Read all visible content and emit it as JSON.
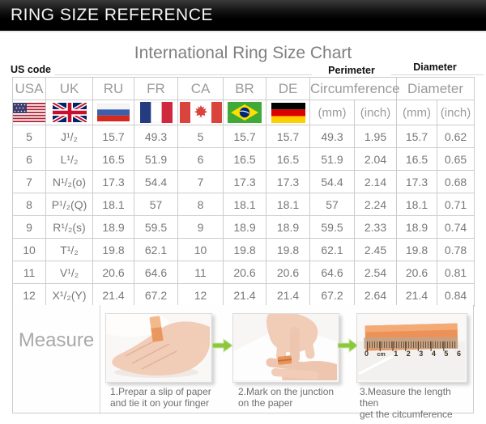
{
  "banner": {
    "title": "RING SIZE REFERENCE"
  },
  "chart": {
    "title": "International Ring Size Chart"
  },
  "annotations": {
    "us_code": "US code",
    "perimeter": "Perimeter",
    "diameter": "Diameter"
  },
  "table": {
    "columns": [
      "USA",
      "UK",
      "RU",
      "FR",
      "CA",
      "BR",
      "DE",
      "Circumference",
      "Diameter"
    ],
    "units": [
      "(mm)",
      "(inch)",
      "(mm)",
      "(inch)"
    ],
    "flags": [
      "usa",
      "uk",
      "ru",
      "fr",
      "ca",
      "br",
      "de"
    ],
    "rows": [
      [
        "5",
        "J¹/₂",
        "15.7",
        "49.3",
        "5",
        "15.7",
        "15.7",
        "49.3",
        "1.95",
        "15.7",
        "0.62"
      ],
      [
        "6",
        "L¹/₂",
        "16.5",
        "51.9",
        "6",
        "16.5",
        "16.5",
        "51.9",
        "2.04",
        "16.5",
        "0.65"
      ],
      [
        "7",
        "N¹/₂(o)",
        "17.3",
        "54.4",
        "7",
        "17.3",
        "17.3",
        "54.4",
        "2.14",
        "17.3",
        "0.68"
      ],
      [
        "8",
        "P¹/₂(Q)",
        "18.1",
        "57",
        "8",
        "18.1",
        "18.1",
        "57",
        "2.24",
        "18.1",
        "0.71"
      ],
      [
        "9",
        "R¹/₂(s)",
        "18.9",
        "59.5",
        "9",
        "18.9",
        "18.9",
        "59.5",
        "2.33",
        "18.9",
        "0.74"
      ],
      [
        "10",
        "T¹/₂",
        "19.8",
        "62.1",
        "10",
        "19.8",
        "19.8",
        "62.1",
        "2.45",
        "19.8",
        "0.78"
      ],
      [
        "11",
        "V¹/₂",
        "20.6",
        "64.6",
        "11",
        "20.6",
        "20.6",
        "64.6",
        "2.54",
        "20.6",
        "0.81"
      ],
      [
        "12",
        "X¹/₂(Y)",
        "21.4",
        "67.2",
        "12",
        "21.4",
        "21.4",
        "67.2",
        "2.64",
        "21.4",
        "0.84"
      ]
    ]
  },
  "measure": {
    "label": "Measure",
    "steps": [
      {
        "caption_line1": "1.Prepar a slip of paper",
        "caption_line2": "and tie it on your finger"
      },
      {
        "caption_line1": "2.Mark on the junction",
        "caption_line2": "on the paper"
      },
      {
        "caption_line1": "3.Measure the length then",
        "caption_line2": "get the citcumference"
      }
    ],
    "ruler_labels": [
      "0",
      "cm",
      "1",
      "2",
      "3",
      "4",
      "5",
      "6"
    ]
  },
  "colors": {
    "banner_black": "#000000",
    "accent_green": "#8dc63f",
    "paper_orange": "#ec9258",
    "table_border": "#cccccc",
    "text_gray": "#787878"
  }
}
